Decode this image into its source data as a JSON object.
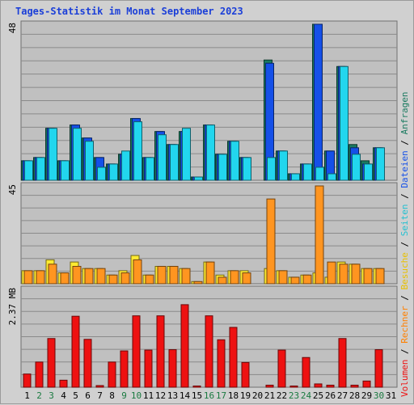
{
  "chart_data": [
    {
      "type": "bar",
      "title": "Tages-Statistik im Monat September 2023",
      "ymax_label": "48",
      "ylim": [
        0,
        48
      ],
      "x": [
        1,
        2,
        3,
        4,
        5,
        6,
        7,
        8,
        9,
        10,
        11,
        12,
        13,
        14,
        15,
        16,
        17,
        18,
        19,
        20,
        21,
        22,
        23,
        24,
        25,
        26,
        27,
        28,
        29,
        30,
        31
      ],
      "series": [
        {
          "name": "Anfragen",
          "color": "#1a7a60",
          "values": [
            6,
            7,
            16,
            6,
            17,
            13,
            7,
            5,
            8,
            19,
            7,
            15,
            11,
            15,
            1,
            17,
            8,
            12,
            7,
            0,
            37,
            9,
            2,
            5,
            48,
            9,
            35,
            11,
            6,
            10,
            0
          ]
        },
        {
          "name": "Dateien",
          "color": "#1550e8",
          "values": [
            6,
            7,
            16,
            6,
            17,
            13,
            7,
            5,
            8,
            19,
            7,
            15,
            11,
            15,
            1,
            17,
            8,
            12,
            7,
            0,
            36,
            9,
            2,
            5,
            48,
            9,
            35,
            10,
            5,
            10,
            0
          ]
        },
        {
          "name": "Seiten",
          "color": "#22d6ee",
          "values": [
            6,
            7,
            16,
            6,
            16,
            12,
            4,
            5,
            9,
            18,
            7,
            14,
            11,
            16,
            1,
            17,
            8,
            12,
            7,
            0,
            7,
            9,
            2,
            5,
            4,
            2,
            35,
            8,
            5,
            10,
            0
          ]
        }
      ]
    },
    {
      "type": "bar",
      "ymax_label": "45",
      "ylim": [
        0,
        45
      ],
      "x": [
        1,
        2,
        3,
        4,
        5,
        6,
        7,
        8,
        9,
        10,
        11,
        12,
        13,
        14,
        15,
        16,
        17,
        18,
        19,
        20,
        21,
        22,
        23,
        24,
        25,
        26,
        27,
        28,
        29,
        30,
        31
      ],
      "series": [
        {
          "name": "Besuche",
          "color": "#ffea30",
          "values": [
            6,
            6,
            11,
            5,
            10,
            7,
            7,
            4,
            6,
            13,
            4,
            8,
            8,
            7,
            1,
            10,
            4,
            6,
            6,
            0,
            7,
            6,
            3,
            4,
            5,
            3,
            10,
            9,
            7,
            7,
            0
          ]
        },
        {
          "name": "Rechner",
          "color": "#ff9520",
          "values": [
            6,
            6,
            9,
            5,
            8,
            7,
            7,
            4,
            5,
            11,
            4,
            8,
            8,
            7,
            1,
            10,
            3,
            6,
            5,
            0,
            39,
            6,
            3,
            4,
            45,
            10,
            9,
            9,
            7,
            7,
            0
          ]
        }
      ]
    },
    {
      "type": "bar",
      "ymax_label": "2.37 MB",
      "ylim": [
        0,
        2.37
      ],
      "x": [
        1,
        2,
        3,
        4,
        5,
        6,
        7,
        8,
        9,
        10,
        11,
        12,
        13,
        14,
        15,
        16,
        17,
        18,
        19,
        20,
        21,
        22,
        23,
        24,
        25,
        26,
        27,
        28,
        29,
        30,
        31
      ],
      "series": [
        {
          "name": "Volumen",
          "color": "#ee1111",
          "values": [
            0.32,
            0.61,
            1.18,
            0.17,
            1.72,
            1.16,
            0.04,
            0.61,
            0.88,
            1.73,
            0.9,
            1.73,
            0.91,
            2.0,
            0.03,
            1.73,
            1.15,
            1.45,
            0.6,
            0,
            0.05,
            0.9,
            0.03,
            0.72,
            0.08,
            0.05,
            1.18,
            0.05,
            0.15,
            0.91,
            0
          ]
        }
      ]
    }
  ],
  "x_labels": [
    "1",
    "2",
    "3",
    "4",
    "5",
    "6",
    "7",
    "8",
    "9",
    "10",
    "11",
    "12",
    "13",
    "14",
    "15",
    "16",
    "17",
    "18",
    "19",
    "20",
    "21",
    "22",
    "23",
    "24",
    "25",
    "26",
    "27",
    "28",
    "29",
    "30",
    "31"
  ],
  "weekend_days": [
    2,
    3,
    9,
    10,
    16,
    17,
    23,
    24,
    30
  ],
  "x_label_colors": {
    "weekday": "#000000",
    "weekend": "#1a7a40"
  },
  "legend": {
    "right": [
      {
        "text": "Anfragen",
        "color": "#1a7a60"
      },
      {
        "text": "Dateien",
        "color": "#1550e8"
      },
      {
        "text": "Seiten",
        "color": "#22c0d0"
      },
      {
        "text": "Besuche",
        "color": "#e8c000"
      },
      {
        "text": "Rechner",
        "color": "#ff8000"
      },
      {
        "text": "Volumen",
        "color": "#ee1111"
      }
    ],
    "separator": "/"
  },
  "colors": {
    "panel_bg": "#c0c0c0",
    "gridline": "#8a8a8a",
    "title": "#1b3fd8"
  }
}
